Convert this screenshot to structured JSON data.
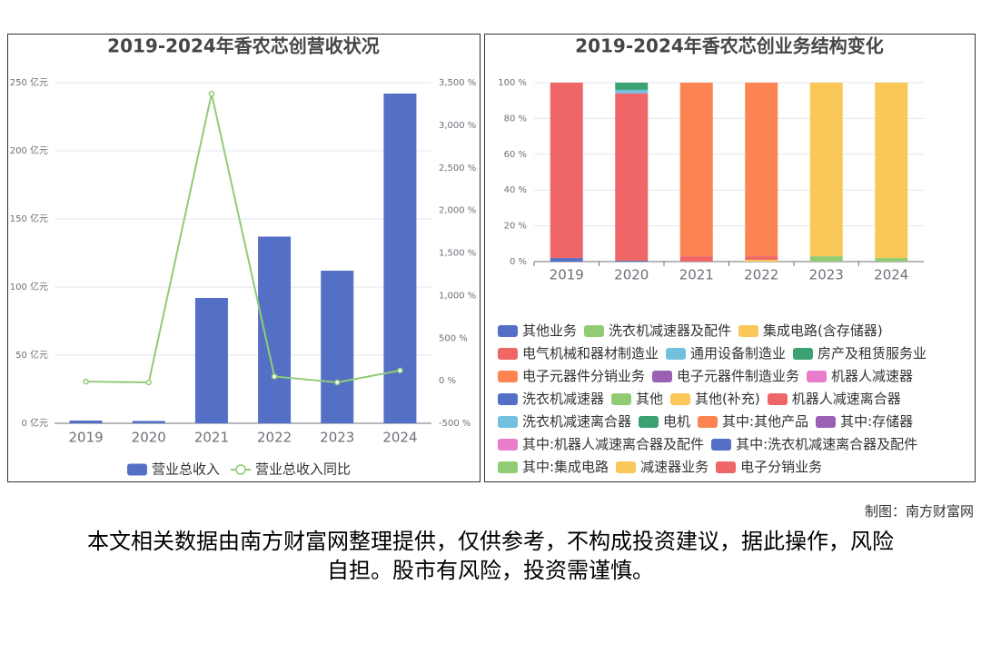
{
  "chart_data": [
    {
      "type": "bar",
      "title": "2019-2024年香农芯创营收状况",
      "categories": [
        "2019",
        "2020",
        "2021",
        "2022",
        "2023",
        "2024"
      ],
      "series": [
        {
          "name": "营业总收入",
          "color": "#5470c6",
          "type": "bar",
          "values": [
            2.0,
            1.7,
            92,
            137,
            112,
            242
          ]
        },
        {
          "name": "营业总收入同比",
          "color": "#91cc75",
          "type": "line",
          "axis": "y2",
          "values": [
            -10,
            -20,
            3370,
            50,
            -20,
            120
          ]
        }
      ],
      "ylim": [
        0,
        250
      ],
      "yticks": [
        {
          "value": 0,
          "label": "0 亿元"
        },
        {
          "value": 50,
          "label": "50 亿元"
        },
        {
          "value": 100,
          "label": "100 亿元"
        },
        {
          "value": 150,
          "label": "150 亿元"
        },
        {
          "value": 200,
          "label": "200 亿元"
        },
        {
          "value": 250,
          "label": "250 亿元"
        }
      ],
      "y2lim": [
        -500,
        3500
      ],
      "y2ticks": [
        {
          "value": -500,
          "label": "-500 %"
        },
        {
          "value": 0,
          "label": "0 %"
        },
        {
          "value": 500,
          "label": "500 %"
        },
        {
          "value": 1000,
          "label": "1,000 %"
        },
        {
          "value": 1500,
          "label": "1,500 %"
        },
        {
          "value": 2000,
          "label": "2,000 %"
        },
        {
          "value": 2500,
          "label": "2,500 %"
        },
        {
          "value": 3000,
          "label": "3,000 %"
        },
        {
          "value": 3500,
          "label": "3,500 %"
        }
      ],
      "grid": true
    },
    {
      "type": "stacked_bar",
      "title": "2019-2024年香农芯创业务结构变化",
      "categories": [
        "2019",
        "2020",
        "2021",
        "2022",
        "2023",
        "2024"
      ],
      "series": [
        {
          "name": "其他业务",
          "color": "#5470c6",
          "values": [
            2,
            0.5,
            null,
            null,
            null,
            null
          ]
        },
        {
          "name": "洗衣机减速器及配件",
          "color": "#91cc75",
          "values": [
            null,
            null,
            null,
            null,
            3,
            2
          ]
        },
        {
          "name": "集成电路(含存储器)",
          "color": "#fac858",
          "values": [
            null,
            null,
            null,
            1,
            97,
            98
          ]
        },
        {
          "name": "电气机械和器材制造业",
          "color": "#ee6666",
          "values": [
            98,
            93.5,
            3,
            2,
            null,
            null
          ]
        },
        {
          "name": "通用设备制造业",
          "color": "#73c0de",
          "values": [
            null,
            2,
            null,
            null,
            null,
            null
          ]
        },
        {
          "name": "房产及租赁服务业",
          "color": "#3ba272",
          "values": [
            null,
            4,
            null,
            null,
            null,
            null
          ]
        },
        {
          "name": "电子元器件分销业务",
          "color": "#fc8452",
          "values": [
            null,
            null,
            97,
            97,
            null,
            null
          ]
        },
        {
          "name": "电子元器件制造业务",
          "color": "#9a60b4",
          "values": [
            null,
            null,
            null,
            null,
            null,
            null
          ]
        },
        {
          "name": "机器人减速器",
          "color": "#ea7ccc",
          "values": [
            null,
            null,
            null,
            null,
            null,
            null
          ]
        },
        {
          "name": "洗衣机减速器",
          "color": "#5470c6",
          "values": [
            null,
            null,
            null,
            null,
            null,
            null
          ]
        },
        {
          "name": "其他",
          "color": "#91cc75",
          "values": [
            null,
            null,
            null,
            null,
            null,
            null
          ]
        },
        {
          "name": "其他(补充)",
          "color": "#fac858",
          "values": [
            null,
            null,
            null,
            null,
            null,
            null
          ]
        },
        {
          "name": "机器人减速离合器",
          "color": "#ee6666",
          "values": [
            null,
            null,
            null,
            null,
            null,
            null
          ]
        },
        {
          "name": "洗衣机减速离合器",
          "color": "#73c0de",
          "values": [
            null,
            null,
            null,
            null,
            null,
            null
          ]
        },
        {
          "name": "电机",
          "color": "#3ba272",
          "values": [
            null,
            null,
            null,
            null,
            null,
            null
          ]
        },
        {
          "name": "其中:其他产品",
          "color": "#fc8452",
          "values": [
            null,
            null,
            null,
            null,
            null,
            null
          ]
        },
        {
          "name": "其中:存储器",
          "color": "#9a60b4",
          "values": [
            null,
            null,
            null,
            null,
            null,
            null
          ]
        },
        {
          "name": "其中:机器人减速离合器及配件",
          "color": "#ea7ccc",
          "values": [
            null,
            null,
            null,
            null,
            null,
            null
          ]
        },
        {
          "name": "其中:洗衣机减速离合器及配件",
          "color": "#5470c6",
          "values": [
            null,
            null,
            null,
            null,
            null,
            null
          ]
        },
        {
          "name": "其中:集成电路",
          "color": "#91cc75",
          "values": [
            null,
            null,
            null,
            null,
            null,
            null
          ]
        },
        {
          "name": "减速器业务",
          "color": "#fac858",
          "values": [
            null,
            null,
            null,
            null,
            null,
            null
          ]
        },
        {
          "name": "电子分销业务",
          "color": "#ee6666",
          "values": [
            null,
            null,
            null,
            null,
            null,
            null
          ]
        }
      ],
      "ylim": [
        0,
        100
      ],
      "yticks": [
        {
          "value": 0,
          "label": "0 %"
        },
        {
          "value": 20,
          "label": "20 %"
        },
        {
          "value": 40,
          "label": "40 %"
        },
        {
          "value": 60,
          "label": "60 %"
        },
        {
          "value": 80,
          "label": "80 %"
        },
        {
          "value": 100,
          "label": "100 %"
        }
      ],
      "grid": true
    }
  ],
  "footer": {
    "credit": "制图：南方财富网",
    "disclaimer": "本文相关数据由南方财富网整理提供，仅供参考，不构成投资建议，据此操作，风险自担。股市有风险，投资需谨慎。"
  }
}
